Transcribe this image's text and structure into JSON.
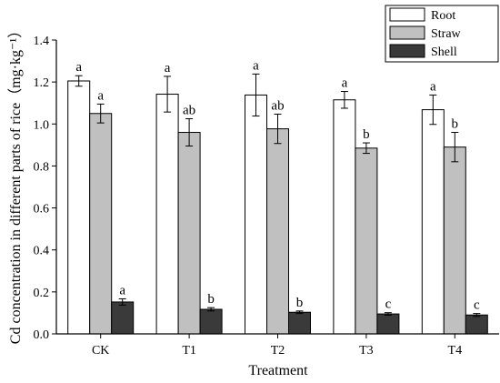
{
  "chart_data": {
    "type": "bar",
    "title": "",
    "xlabel": "Treatment",
    "ylabel": "Cd concentration in different parts of rice（mg·kg⁻¹）",
    "ylim": [
      0,
      1.4
    ],
    "yticks": [
      "0.0",
      "0.2",
      "0.4",
      "0.6",
      "0.8",
      "1.0",
      "1.2",
      "1.4"
    ],
    "categories": [
      "CK",
      "T1",
      "T2",
      "T3",
      "T4"
    ],
    "legend_position": "top-right",
    "series": [
      {
        "name": "Root",
        "color": "#ffffff",
        "values": [
          1.205,
          1.142,
          1.138,
          1.115,
          1.068
        ],
        "errors": [
          0.025,
          0.085,
          0.1,
          0.04,
          0.07
        ],
        "labels": [
          "a",
          "a",
          "a",
          "a",
          "a"
        ]
      },
      {
        "name": "Straw",
        "color": "#c0c0c0",
        "values": [
          1.05,
          0.96,
          0.977,
          0.885,
          0.89
        ],
        "errors": [
          0.045,
          0.065,
          0.07,
          0.025,
          0.07
        ],
        "labels": [
          "a",
          "ab",
          "ab",
          "b",
          "b"
        ]
      },
      {
        "name": "Shell",
        "color": "#3a3a3a",
        "values": [
          0.152,
          0.117,
          0.103,
          0.095,
          0.09
        ],
        "errors": [
          0.015,
          0.008,
          0.006,
          0.006,
          0.007
        ],
        "labels": [
          "a",
          "b",
          "b",
          "c",
          "c"
        ]
      }
    ]
  }
}
